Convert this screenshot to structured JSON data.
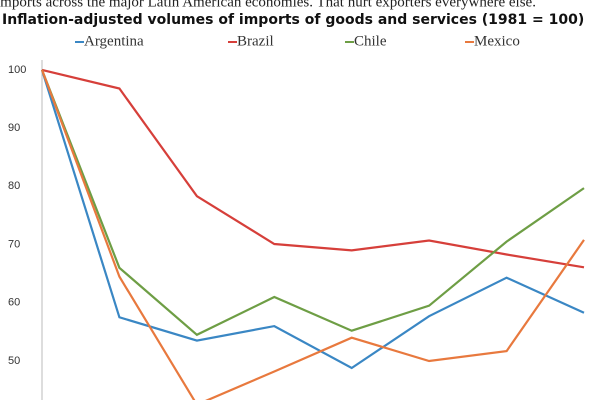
{
  "chart_data": {
    "type": "line",
    "subtitle": "imports across the major Latin American economies. That hurt exporters everywhere else.",
    "title": "Inflation-adjusted volumes of imports of goods and services (1981 = 100)",
    "categories": [
      null,
      null,
      null,
      null,
      null,
      null,
      null,
      null
    ],
    "series": [
      {
        "name": "Argentina",
        "color": "#3a87c4",
        "values": [
          100,
          57.5,
          53.5,
          56,
          48.8,
          57.7,
          64.3,
          58.3
        ]
      },
      {
        "name": "Brazil",
        "color": "#d63f3a",
        "values": [
          100,
          96.8,
          78.3,
          70.1,
          69,
          70.7,
          68.3,
          66.1
        ]
      },
      {
        "name": "Chile",
        "color": "#6e9e45",
        "values": [
          100,
          66,
          54.5,
          61,
          55.2,
          59.5,
          70.5,
          79.7
        ]
      },
      {
        "name": "Mexico",
        "color": "#e8793e",
        "values": [
          100,
          64.5,
          42.5,
          48.2,
          54,
          50,
          51.7,
          70.8
        ]
      }
    ],
    "ylim": [
      43.3,
      101.7
    ],
    "yticks": [
      50,
      60,
      70,
      80,
      90,
      100
    ],
    "grid": false
  }
}
